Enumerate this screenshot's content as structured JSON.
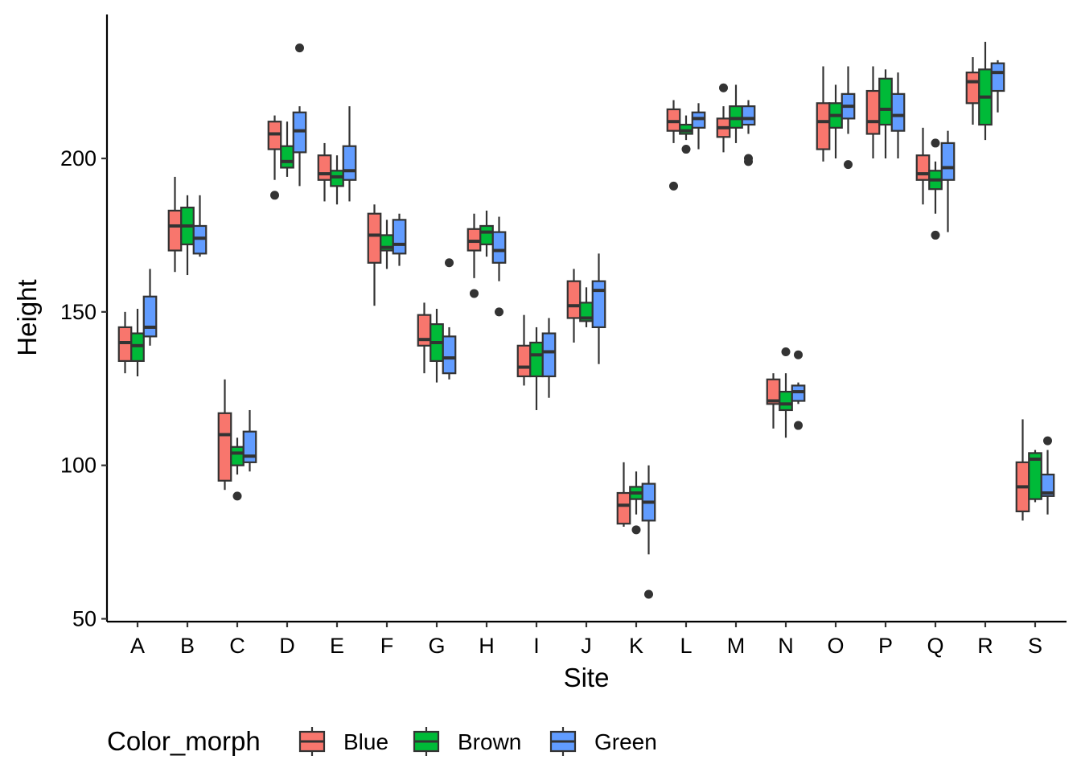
{
  "chart_data": {
    "type": "boxplot",
    "xlabel": "Site",
    "ylabel": "Height",
    "categories": [
      "A",
      "B",
      "C",
      "D",
      "E",
      "F",
      "G",
      "H",
      "I",
      "J",
      "K",
      "L",
      "M",
      "N",
      "O",
      "P",
      "Q",
      "R",
      "S"
    ],
    "yticks": [
      50,
      100,
      150,
      200
    ],
    "ylim": [
      48,
      245
    ],
    "grid": false,
    "legend": {
      "title": "Color_morph",
      "position": "bottom"
    },
    "series": [
      {
        "name": "Blue",
        "color": "#F8766D",
        "boxes": [
          {
            "q1": 134,
            "median": 140,
            "q3": 145,
            "wlo": 130,
            "whi": 150,
            "outliers": []
          },
          {
            "q1": 170,
            "median": 178,
            "q3": 183,
            "wlo": 163,
            "whi": 194,
            "outliers": []
          },
          {
            "q1": 95,
            "median": 110,
            "q3": 117,
            "wlo": 92,
            "whi": 128,
            "outliers": []
          },
          {
            "q1": 203,
            "median": 208,
            "q3": 212,
            "wlo": 193,
            "whi": 214,
            "outliers": [
              188
            ]
          },
          {
            "q1": 193,
            "median": 195,
            "q3": 201,
            "wlo": 186,
            "whi": 205,
            "outliers": []
          },
          {
            "q1": 166,
            "median": 175,
            "q3": 182,
            "wlo": 152,
            "whi": 185,
            "outliers": []
          },
          {
            "q1": 139,
            "median": 141,
            "q3": 149,
            "wlo": 130,
            "whi": 153,
            "outliers": []
          },
          {
            "q1": 170,
            "median": 173,
            "q3": 177,
            "wlo": 161,
            "whi": 182,
            "outliers": [
              156
            ]
          },
          {
            "q1": 129,
            "median": 132,
            "q3": 139,
            "wlo": 126,
            "whi": 149,
            "outliers": []
          },
          {
            "q1": 148,
            "median": 152,
            "q3": 160,
            "wlo": 140,
            "whi": 164,
            "outliers": []
          },
          {
            "q1": 81,
            "median": 87,
            "q3": 91,
            "wlo": 80,
            "whi": 101,
            "outliers": []
          },
          {
            "q1": 209,
            "median": 212,
            "q3": 216,
            "wlo": 205,
            "whi": 219,
            "outliers": [
              191
            ]
          },
          {
            "q1": 207,
            "median": 210,
            "q3": 213,
            "wlo": 202,
            "whi": 217,
            "outliers": [
              223
            ]
          },
          {
            "q1": 120,
            "median": 121,
            "q3": 128,
            "wlo": 112,
            "whi": 130,
            "outliers": []
          },
          {
            "q1": 203,
            "median": 212,
            "q3": 218,
            "wlo": 199,
            "whi": 230,
            "outliers": []
          },
          {
            "q1": 208,
            "median": 212,
            "q3": 222,
            "wlo": 200,
            "whi": 230,
            "outliers": []
          },
          {
            "q1": 193,
            "median": 195,
            "q3": 201,
            "wlo": 185,
            "whi": 210,
            "outliers": []
          },
          {
            "q1": 218,
            "median": 225,
            "q3": 228,
            "wlo": 211,
            "whi": 233,
            "outliers": []
          },
          {
            "q1": 85,
            "median": 93,
            "q3": 101,
            "wlo": 82,
            "whi": 115,
            "outliers": []
          }
        ]
      },
      {
        "name": "Brown",
        "color": "#00BA38",
        "boxes": [
          {
            "q1": 134,
            "median": 139,
            "q3": 143,
            "wlo": 129,
            "whi": 151,
            "outliers": []
          },
          {
            "q1": 172,
            "median": 178,
            "q3": 184,
            "wlo": 162,
            "whi": 188,
            "outliers": []
          },
          {
            "q1": 100,
            "median": 104,
            "q3": 106,
            "wlo": 97,
            "whi": 109,
            "outliers": [
              90
            ]
          },
          {
            "q1": 197,
            "median": 199,
            "q3": 204,
            "wlo": 194,
            "whi": 212,
            "outliers": []
          },
          {
            "q1": 191,
            "median": 194,
            "q3": 196,
            "wlo": 185,
            "whi": 201,
            "outliers": []
          },
          {
            "q1": 170,
            "median": 171,
            "q3": 175,
            "wlo": 164,
            "whi": 180,
            "outliers": []
          },
          {
            "q1": 134,
            "median": 140,
            "q3": 146,
            "wlo": 127,
            "whi": 151,
            "outliers": []
          },
          {
            "q1": 172,
            "median": 176,
            "q3": 178,
            "wlo": 168,
            "whi": 183,
            "outliers": []
          },
          {
            "q1": 129,
            "median": 136,
            "q3": 140,
            "wlo": 118,
            "whi": 145,
            "outliers": []
          },
          {
            "q1": 147,
            "median": 148,
            "q3": 153,
            "wlo": 145,
            "whi": 158,
            "outliers": []
          },
          {
            "q1": 89,
            "median": 91,
            "q3": 93,
            "wlo": 84,
            "whi": 98,
            "outliers": [
              79
            ]
          },
          {
            "q1": 208,
            "median": 209,
            "q3": 211,
            "wlo": 206,
            "whi": 214,
            "outliers": [
              203
            ]
          },
          {
            "q1": 210,
            "median": 213,
            "q3": 217,
            "wlo": 205,
            "whi": 224,
            "outliers": []
          },
          {
            "q1": 118,
            "median": 120,
            "q3": 124,
            "wlo": 109,
            "whi": 130,
            "outliers": [
              137
            ]
          },
          {
            "q1": 210,
            "median": 214,
            "q3": 218,
            "wlo": 200,
            "whi": 224,
            "outliers": []
          },
          {
            "q1": 211,
            "median": 216,
            "q3": 226,
            "wlo": 200,
            "whi": 229,
            "outliers": []
          },
          {
            "q1": 190,
            "median": 193,
            "q3": 196,
            "wlo": 182,
            "whi": 199,
            "outliers": [
              175,
              205
            ]
          },
          {
            "q1": 211,
            "median": 220,
            "q3": 229,
            "wlo": 206,
            "whi": 238,
            "outliers": []
          },
          {
            "q1": 89,
            "median": 102,
            "q3": 104,
            "wlo": 88,
            "whi": 105,
            "outliers": []
          }
        ]
      },
      {
        "name": "Green",
        "color": "#619CFF",
        "boxes": [
          {
            "q1": 142,
            "median": 145,
            "q3": 155,
            "wlo": 139,
            "whi": 164,
            "outliers": []
          },
          {
            "q1": 169,
            "median": 174,
            "q3": 178,
            "wlo": 168,
            "whi": 188,
            "outliers": []
          },
          {
            "q1": 101,
            "median": 103,
            "q3": 111,
            "wlo": 98,
            "whi": 118,
            "outliers": []
          },
          {
            "q1": 202,
            "median": 209,
            "q3": 215,
            "wlo": 191,
            "whi": 217,
            "outliers": [
              236
            ]
          },
          {
            "q1": 193,
            "median": 196,
            "q3": 204,
            "wlo": 186,
            "whi": 217,
            "outliers": []
          },
          {
            "q1": 169,
            "median": 172,
            "q3": 180,
            "wlo": 165,
            "whi": 182,
            "outliers": []
          },
          {
            "q1": 130,
            "median": 135,
            "q3": 142,
            "wlo": 128,
            "whi": 145,
            "outliers": [
              166
            ]
          },
          {
            "q1": 166,
            "median": 170,
            "q3": 176,
            "wlo": 160,
            "whi": 181,
            "outliers": [
              150
            ]
          },
          {
            "q1": 129,
            "median": 137,
            "q3": 143,
            "wlo": 122,
            "whi": 148,
            "outliers": []
          },
          {
            "q1": 145,
            "median": 157,
            "q3": 160,
            "wlo": 133,
            "whi": 169,
            "outliers": []
          },
          {
            "q1": 82,
            "median": 88,
            "q3": 94,
            "wlo": 71,
            "whi": 100,
            "outliers": [
              58
            ]
          },
          {
            "q1": 210,
            "median": 213,
            "q3": 215,
            "wlo": 203,
            "whi": 218,
            "outliers": []
          },
          {
            "q1": 211,
            "median": 213,
            "q3": 217,
            "wlo": 208,
            "whi": 219,
            "outliers": [
              199,
              200
            ]
          },
          {
            "q1": 121,
            "median": 124,
            "q3": 126,
            "wlo": 120,
            "whi": 127,
            "outliers": [
              113,
              136
            ]
          },
          {
            "q1": 213,
            "median": 217,
            "q3": 221,
            "wlo": 208,
            "whi": 230,
            "outliers": [
              198
            ]
          },
          {
            "q1": 209,
            "median": 214,
            "q3": 221,
            "wlo": 200,
            "whi": 228,
            "outliers": []
          },
          {
            "q1": 193,
            "median": 197,
            "q3": 205,
            "wlo": 176,
            "whi": 209,
            "outliers": []
          },
          {
            "q1": 222,
            "median": 228,
            "q3": 231,
            "wlo": 215,
            "whi": 232,
            "outliers": []
          },
          {
            "q1": 90,
            "median": 91,
            "q3": 97,
            "wlo": 84,
            "whi": 105,
            "outliers": [
              108
            ]
          }
        ]
      }
    ]
  }
}
